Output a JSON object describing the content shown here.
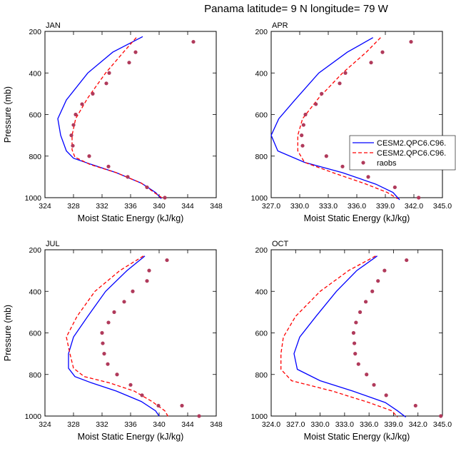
{
  "title": "Panama  latitude= 9 N longitude= 79 W",
  "legend_items": [
    {
      "label": "CESM2.QPC6.C96.",
      "color": "#0000ff",
      "dash": "solid",
      "marker": "line"
    },
    {
      "label": "CESM2.QPC6.C96.",
      "color": "#ff0000",
      "dash": "dashed",
      "marker": "line"
    },
    {
      "label": "raobs",
      "color": "#b03a5b",
      "dash": "none",
      "marker": "dot"
    }
  ],
  "chart_data": [
    {
      "type": "line",
      "panel_title": "JAN",
      "xlabel": "Moist Static Energy (kJ/kg)",
      "ylabel": "Pressure (mb)",
      "xlim": [
        324,
        348
      ],
      "ylim": [
        1000,
        200
      ],
      "y_reversed": true,
      "x_ticks": [
        324,
        328,
        332,
        336,
        340,
        344,
        348
      ],
      "x_tick_labels": [
        "324",
        "328",
        "332",
        "336",
        "340",
        "344",
        "348"
      ],
      "y_ticks": [
        200,
        400,
        600,
        800,
        1000
      ],
      "y_tick_labels": [
        "200",
        "400",
        "600",
        "800",
        "1000"
      ],
      "series": [
        {
          "legend_index": 0,
          "x": [
            337.7,
            333.5,
            330.0,
            327.0,
            325.8,
            326.2,
            327.0,
            328.0,
            330.5,
            334.0,
            337.5,
            339.5,
            340.3
          ],
          "y": [
            225,
            300,
            400,
            530,
            620,
            700,
            775,
            810,
            840,
            880,
            930,
            975,
            1005
          ]
        },
        {
          "legend_index": 1,
          "x": [
            336.8,
            335.0,
            332.5,
            330.0,
            328.3,
            327.8,
            327.8,
            328.2,
            330.3,
            334.0,
            337.5,
            339.3,
            340.6
          ],
          "y": [
            230,
            300,
            400,
            520,
            620,
            700,
            770,
            805,
            840,
            880,
            930,
            975,
            1005
          ]
        },
        {
          "legend_index": 2,
          "x": [
            344.8,
            336.7,
            335.8,
            333.0,
            332.6,
            330.7,
            329.2,
            328.3,
            328.0,
            327.7,
            327.9,
            330.2,
            332.9,
            335.6,
            338.3,
            340.8
          ],
          "y": [
            250,
            300,
            350,
            400,
            450,
            500,
            550,
            600,
            650,
            700,
            750,
            800,
            850,
            900,
            950,
            1000
          ]
        }
      ]
    },
    {
      "type": "line",
      "panel_title": "APR",
      "xlabel": "Moist Static Energy (kJ/kg)",
      "ylabel": "",
      "xlim": [
        327,
        345
      ],
      "ylim": [
        1000,
        200
      ],
      "y_reversed": true,
      "x_ticks": [
        327,
        330,
        333,
        336,
        339,
        342,
        345
      ],
      "x_tick_labels": [
        "327.0",
        "330.0",
        "333.0",
        "336.0",
        "339.0",
        "342.0",
        "345.0"
      ],
      "y_ticks": [
        200,
        400,
        600,
        800,
        1000
      ],
      "y_tick_labels": [
        "200",
        "400",
        "600",
        "800",
        "1000"
      ],
      "series": [
        {
          "legend_index": 0,
          "x": [
            337.7,
            335.0,
            332.0,
            329.5,
            327.8,
            327.0,
            327.7,
            330.5,
            334.5,
            338.0,
            339.8,
            340.5
          ],
          "y": [
            230,
            300,
            400,
            530,
            620,
            700,
            775,
            830,
            880,
            935,
            975,
            1010
          ]
        },
        {
          "legend_index": 1,
          "x": [
            338.5,
            337.0,
            334.5,
            332.0,
            330.3,
            329.8,
            329.8,
            330.5,
            333.5,
            337.0,
            339.2,
            340.3
          ],
          "y": [
            230,
            300,
            400,
            520,
            620,
            700,
            775,
            830,
            880,
            935,
            975,
            1005
          ]
        },
        {
          "legend_index": 2,
          "x": [
            341.7,
            338.7,
            337.5,
            334.8,
            334.2,
            332.3,
            331.7,
            330.6,
            330.4,
            330.2,
            330.3,
            332.8,
            334.5,
            337.2,
            340.0,
            342.5
          ],
          "y": [
            250,
            300,
            350,
            400,
            450,
            500,
            550,
            600,
            650,
            700,
            750,
            800,
            850,
            900,
            950,
            1000
          ]
        }
      ]
    },
    {
      "type": "line",
      "panel_title": "JUL",
      "xlabel": "Moist Static Energy (kJ/kg)",
      "ylabel": "Pressure (mb)",
      "xlim": [
        324,
        348
      ],
      "ylim": [
        1000,
        200
      ],
      "y_reversed": true,
      "x_ticks": [
        324,
        328,
        332,
        336,
        340,
        344,
        348
      ],
      "x_tick_labels": [
        "324",
        "328",
        "332",
        "336",
        "340",
        "344",
        "348"
      ],
      "y_ticks": [
        200,
        400,
        600,
        800,
        1000
      ],
      "y_tick_labels": [
        "200",
        "400",
        "600",
        "800",
        "1000"
      ],
      "series": [
        {
          "legend_index": 0,
          "x": [
            338.0,
            335.5,
            332.5,
            330.0,
            328.0,
            327.3,
            327.3,
            328.2,
            330.5,
            334.0,
            337.5,
            339.5,
            340.0
          ],
          "y": [
            230,
            300,
            400,
            520,
            620,
            700,
            770,
            810,
            840,
            880,
            930,
            975,
            1000
          ]
        },
        {
          "legend_index": 1,
          "x": [
            337.8,
            334.5,
            331.0,
            328.5,
            327.0,
            327.5,
            328.0,
            329.5,
            333.0,
            336.5,
            339.0,
            340.8,
            341.3
          ],
          "y": [
            230,
            300,
            400,
            520,
            620,
            700,
            770,
            810,
            840,
            880,
            930,
            975,
            1005
          ]
        },
        {
          "legend_index": 2,
          "x": [
            341.1,
            338.6,
            338.3,
            336.3,
            335.1,
            333.7,
            332.9,
            332.0,
            332.1,
            332.3,
            332.8,
            334.1,
            336.0,
            337.6,
            339.9,
            343.2,
            345.6
          ],
          "y": [
            250,
            300,
            350,
            400,
            450,
            500,
            550,
            600,
            650,
            700,
            750,
            800,
            850,
            900,
            950,
            950,
            1000
          ]
        }
      ]
    },
    {
      "type": "line",
      "panel_title": "OCT",
      "xlabel": "Moist Static Energy (kJ/kg)",
      "ylabel": "",
      "xlim": [
        324,
        345
      ],
      "ylim": [
        1000,
        200
      ],
      "y_reversed": true,
      "x_ticks": [
        324,
        327,
        330,
        333,
        336,
        339,
        342,
        345
      ],
      "x_tick_labels": [
        "324.0",
        "327.0",
        "330.0",
        "333.0",
        "336.0",
        "339.0",
        "342.0",
        "345.0"
      ],
      "y_ticks": [
        200,
        400,
        600,
        800,
        1000
      ],
      "y_tick_labels": [
        "200",
        "400",
        "600",
        "800",
        "1000"
      ],
      "series": [
        {
          "legend_index": 0,
          "x": [
            337.0,
            334.5,
            332.0,
            329.5,
            327.5,
            326.8,
            327.2,
            330.0,
            334.0,
            338.0,
            339.5,
            340.5
          ],
          "y": [
            230,
            300,
            400,
            520,
            620,
            700,
            775,
            830,
            880,
            935,
            975,
            1005
          ]
        },
        {
          "legend_index": 1,
          "x": [
            336.8,
            333.5,
            330.0,
            327.0,
            325.5,
            325.2,
            325.2,
            326.5,
            331.5,
            336.0,
            338.8,
            339.5
          ],
          "y": [
            230,
            300,
            400,
            520,
            620,
            700,
            775,
            830,
            880,
            935,
            975,
            1005
          ]
        },
        {
          "legend_index": 2,
          "x": [
            340.6,
            337.9,
            337.1,
            336.4,
            335.6,
            334.9,
            334.4,
            334.1,
            334.2,
            334.3,
            334.7,
            335.7,
            336.6,
            338.1,
            341.7,
            344.8
          ],
          "y": [
            250,
            300,
            350,
            400,
            450,
            500,
            550,
            600,
            650,
            700,
            750,
            800,
            850,
            900,
            950,
            1000
          ]
        }
      ]
    }
  ]
}
